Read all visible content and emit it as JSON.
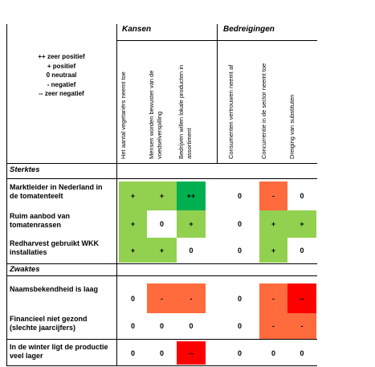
{
  "header": {
    "kansen": "Kansen",
    "bedreigingen": "Bedreigingen"
  },
  "legend": [
    "++ zeer positief",
    "+ positief",
    "0 neutraal",
    "- negatief",
    "-- zeer negatief"
  ],
  "columns": [
    "Het aantal vegetariërs neemt toe",
    "Mensen worden bewuster van de voedselverspilling",
    "Bedrijven willen lokale producten in assortiment",
    "Consumenten vertrouwen neemt af",
    "Concurrentie in de sector neemt toe",
    "Dreiging van substituten"
  ],
  "sections": [
    {
      "title": "Sterktes",
      "rows": [
        {
          "label": "Marktleider in Nederland in de tomatenteelt",
          "cells": [
            {
              "text": "+",
              "color": "#92d050"
            },
            {
              "text": "+",
              "color": "#92d050"
            },
            {
              "text": "++",
              "color": "#00b050"
            },
            {
              "text": "0",
              "color": "#ffffff"
            },
            {
              "text": "-",
              "color": "#ff6b3d"
            },
            {
              "text": "0",
              "color": "#ffffff"
            }
          ]
        },
        {
          "label": "Ruim aanbod van tomatenrassen",
          "cells": [
            {
              "text": "+",
              "color": "#92d050"
            },
            {
              "text": "0",
              "color": "#ffffff"
            },
            {
              "text": "+",
              "color": "#92d050"
            },
            {
              "text": "0",
              "color": "#ffffff"
            },
            {
              "text": "+",
              "color": "#92d050"
            },
            {
              "text": "+",
              "color": "#92d050"
            }
          ]
        },
        {
          "label": "Redharvest gebruikt WKK installaties",
          "cells": [
            {
              "text": "+",
              "color": "#92d050"
            },
            {
              "text": "+",
              "color": "#92d050"
            },
            {
              "text": "0",
              "color": "#ffffff"
            },
            {
              "text": "0",
              "color": "#ffffff"
            },
            {
              "text": "+",
              "color": "#92d050"
            },
            {
              "text": "0",
              "color": "#ffffff"
            }
          ]
        }
      ]
    },
    {
      "title": "Zwaktes",
      "rows": [
        {
          "label": "Naamsbekendheid is laag",
          "cells": [
            {
              "text": "0",
              "color": "#ffffff"
            },
            {
              "text": "-",
              "color": "#ff6b3d"
            },
            {
              "text": "-",
              "color": "#ff6b3d"
            },
            {
              "text": "0",
              "color": "#ffffff"
            },
            {
              "text": "-",
              "color": "#ff6b3d"
            },
            {
              "text": "--",
              "color": "#ff0000"
            }
          ]
        },
        {
          "label": "Financieel niet gezond (slechte jaarcijfers)",
          "cells": [
            {
              "text": "0",
              "color": "#ffffff"
            },
            {
              "text": "0",
              "color": "#ffffff"
            },
            {
              "text": "0",
              "color": "#ffffff"
            },
            {
              "text": "0",
              "color": "#ffffff"
            },
            {
              "text": "-",
              "color": "#ff6b3d"
            },
            {
              "text": "-",
              "color": "#ff6b3d"
            }
          ]
        },
        {
          "label": "In de winter ligt de productie veel lager",
          "cells": [
            {
              "text": "0",
              "color": "#ffffff"
            },
            {
              "text": "0",
              "color": "#ffffff"
            },
            {
              "text": "--",
              "color": "#ff0000"
            },
            {
              "text": "0",
              "color": "#ffffff"
            },
            {
              "text": "0",
              "color": "#ffffff"
            },
            {
              "text": "0",
              "color": "#ffffff"
            }
          ]
        }
      ]
    }
  ]
}
